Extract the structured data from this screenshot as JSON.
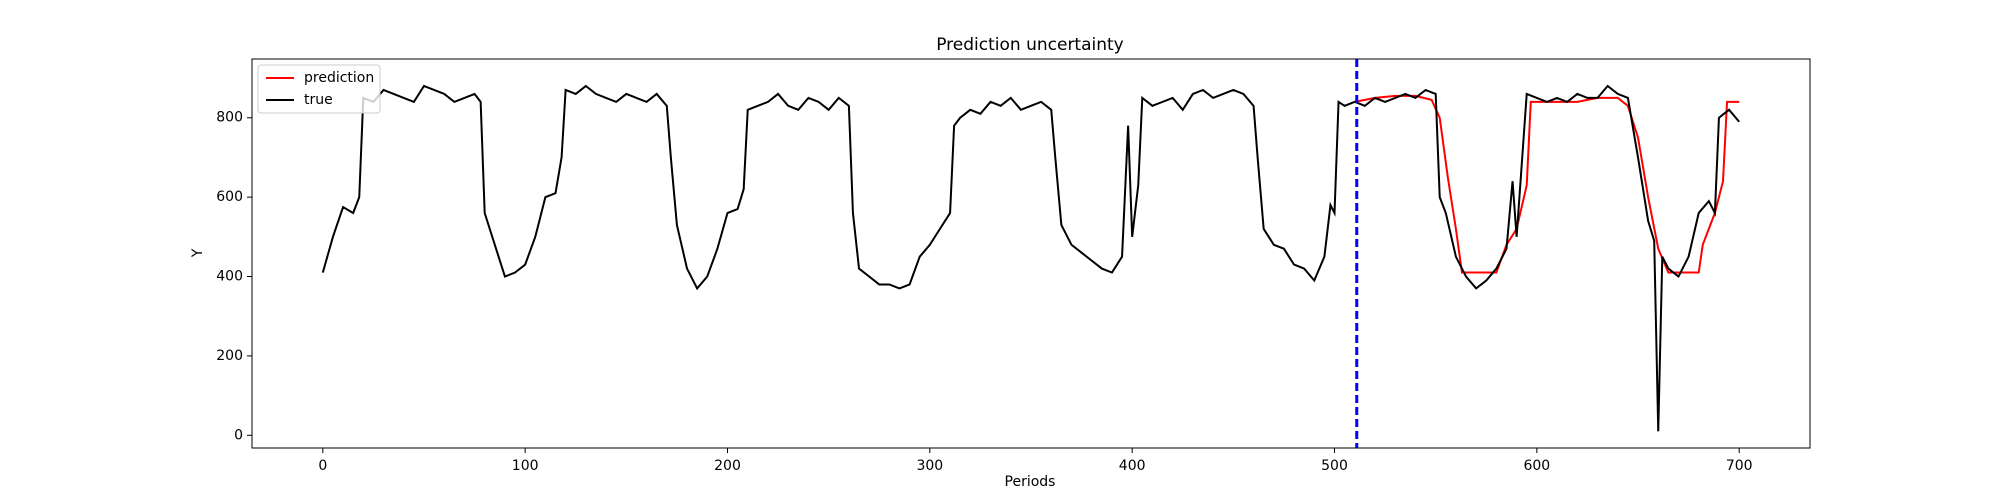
{
  "chart_data": {
    "type": "line",
    "title": "Prediction uncertainty",
    "x_label": "Periods",
    "y_label": "Y",
    "xlim": [
      -35,
      735
    ],
    "ylim": [
      -32,
      948
    ],
    "xticks": [
      0,
      100,
      200,
      300,
      400,
      500,
      600,
      700
    ],
    "yticks": [
      0,
      200,
      400,
      600,
      800
    ],
    "legend": "upper left",
    "vline": 511,
    "vline_color": "#0000ff",
    "series": [
      {
        "name": "prediction",
        "color": "#ff0000",
        "x": [
          510,
          520,
          530,
          540,
          548,
          552,
          556,
          560,
          563,
          570,
          580,
          585,
          590,
          595,
          597,
          610,
          620,
          630,
          640,
          645,
          650,
          655,
          660,
          665,
          680,
          682,
          688,
          692,
          694,
          700
        ],
        "values": [
          840,
          850,
          855,
          855,
          845,
          800,
          650,
          520,
          410,
          410,
          410,
          480,
          520,
          630,
          840,
          840,
          840,
          850,
          850,
          830,
          750,
          600,
          470,
          410,
          410,
          480,
          560,
          640,
          840,
          840
        ]
      },
      {
        "name": "true",
        "color": "#000000",
        "x": [
          0,
          5,
          10,
          15,
          18,
          20,
          25,
          30,
          35,
          40,
          45,
          50,
          55,
          60,
          65,
          70,
          75,
          78,
          80,
          85,
          90,
          95,
          100,
          105,
          110,
          115,
          118,
          120,
          125,
          130,
          135,
          140,
          145,
          150,
          155,
          160,
          165,
          170,
          172,
          175,
          180,
          185,
          190,
          195,
          200,
          205,
          208,
          210,
          215,
          220,
          225,
          230,
          235,
          240,
          245,
          250,
          255,
          260,
          262,
          265,
          270,
          275,
          280,
          285,
          290,
          295,
          300,
          305,
          310,
          312,
          315,
          320,
          325,
          330,
          335,
          340,
          345,
          350,
          355,
          360,
          362,
          365,
          370,
          375,
          380,
          385,
          390,
          395,
          398,
          400,
          403,
          405,
          410,
          415,
          420,
          425,
          430,
          435,
          440,
          445,
          450,
          455,
          460,
          462,
          465,
          470,
          475,
          480,
          485,
          490,
          495,
          498,
          500,
          502,
          505,
          510,
          515,
          520,
          525,
          530,
          535,
          540,
          545,
          550,
          552,
          555,
          560,
          565,
          570,
          575,
          580,
          585,
          588,
          590,
          595,
          600,
          605,
          610,
          615,
          620,
          625,
          630,
          635,
          640,
          645,
          650,
          655,
          658,
          660,
          662,
          665,
          670,
          675,
          680,
          685,
          688,
          690,
          695,
          700
        ],
        "values": [
          410,
          500,
          575,
          560,
          600,
          850,
          840,
          870,
          860,
          850,
          840,
          880,
          870,
          860,
          840,
          850,
          860,
          840,
          560,
          480,
          400,
          410,
          430,
          500,
          600,
          610,
          700,
          870,
          860,
          880,
          860,
          850,
          840,
          860,
          850,
          840,
          860,
          830,
          700,
          530,
          420,
          370,
          400,
          470,
          560,
          570,
          620,
          820,
          830,
          840,
          860,
          830,
          820,
          850,
          840,
          820,
          850,
          830,
          560,
          420,
          400,
          380,
          380,
          370,
          380,
          450,
          480,
          520,
          560,
          780,
          800,
          820,
          810,
          840,
          830,
          850,
          820,
          830,
          840,
          820,
          700,
          530,
          480,
          460,
          440,
          420,
          410,
          450,
          780,
          500,
          630,
          850,
          830,
          840,
          850,
          820,
          860,
          870,
          850,
          860,
          870,
          860,
          830,
          700,
          520,
          480,
          470,
          430,
          420,
          390,
          450,
          580,
          560,
          840,
          830,
          840,
          830,
          850,
          840,
          850,
          860,
          850,
          870,
          860,
          600,
          560,
          450,
          400,
          370,
          390,
          420,
          470,
          640,
          500,
          860,
          850,
          840,
          850,
          840,
          860,
          850,
          850,
          880,
          860,
          850,
          700,
          540,
          490,
          10,
          450,
          420,
          400,
          450,
          560,
          590,
          560,
          800,
          820,
          790
        ]
      }
    ]
  }
}
